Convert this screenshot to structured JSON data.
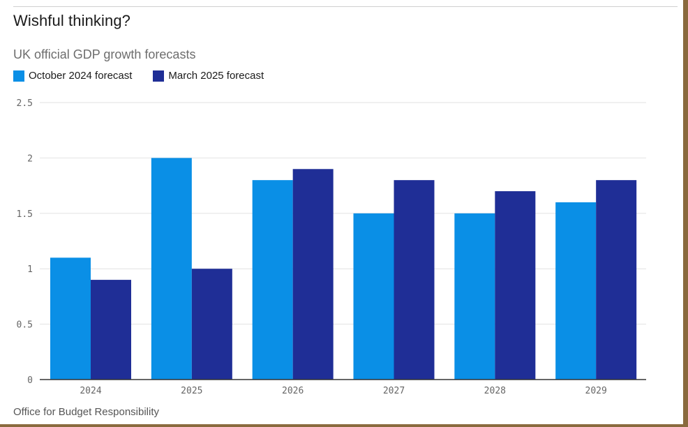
{
  "title": "Wishful thinking?",
  "source": "Office for Budget Responsibility",
  "chart_data": {
    "type": "bar",
    "subtitle": "UK official GDP growth forecasts",
    "categories": [
      "2024",
      "2025",
      "2026",
      "2027",
      "2028",
      "2029"
    ],
    "series": [
      {
        "name": "October 2024 forecast",
        "color": "#0a8fe6",
        "values": [
          1.1,
          2.0,
          1.8,
          1.5,
          1.5,
          1.6
        ]
      },
      {
        "name": "March 2025 forecast",
        "color": "#1f2e96",
        "values": [
          0.9,
          1.0,
          1.9,
          1.8,
          1.7,
          1.8
        ]
      }
    ],
    "ylim": [
      0,
      2.5
    ],
    "yticks": [
      "0",
      "0.5",
      "1",
      "1.5",
      "2",
      "2.5"
    ],
    "grid": true,
    "legend": "top-left"
  }
}
